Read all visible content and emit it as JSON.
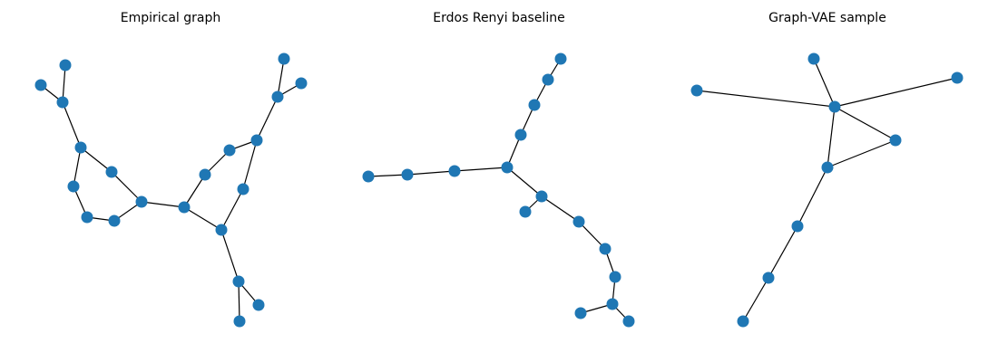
{
  "style": {
    "node_color": "#1f77b4",
    "edge_color": "#000000",
    "background": "#ffffff"
  },
  "panels": [
    {
      "title": "Empirical graph",
      "node_count": 24,
      "edges": [
        [
          0,
          1
        ],
        [
          1,
          2
        ],
        [
          1,
          3
        ],
        [
          3,
          4
        ],
        [
          3,
          5
        ],
        [
          4,
          6
        ],
        [
          6,
          7
        ],
        [
          7,
          8
        ],
        [
          8,
          9
        ],
        [
          5,
          9
        ],
        [
          9,
          10
        ],
        [
          10,
          11
        ],
        [
          10,
          12
        ],
        [
          11,
          13
        ],
        [
          13,
          14
        ],
        [
          14,
          15
        ],
        [
          15,
          16
        ],
        [
          15,
          17
        ],
        [
          14,
          18
        ],
        [
          18,
          12
        ],
        [
          12,
          19
        ],
        [
          19,
          20
        ],
        [
          19,
          21
        ],
        [
          2,
          22
        ],
        [
          2,
          23
        ]
      ]
    },
    {
      "title": "Erdos Renyi baseline",
      "node_count": 19,
      "edges": [
        [
          0,
          1
        ],
        [
          1,
          2
        ],
        [
          2,
          3
        ],
        [
          3,
          4
        ],
        [
          4,
          5
        ],
        [
          5,
          6
        ],
        [
          5,
          7
        ],
        [
          7,
          8
        ],
        [
          8,
          9
        ],
        [
          9,
          10
        ],
        [
          10,
          11
        ],
        [
          11,
          12
        ],
        [
          12,
          13
        ],
        [
          13,
          14
        ],
        [
          14,
          15
        ],
        [
          15,
          16
        ],
        [
          16,
          17
        ],
        [
          16,
          18
        ]
      ]
    },
    {
      "title": "Graph-VAE sample",
      "node_count": 9,
      "edges": [
        [
          0,
          1
        ],
        [
          1,
          2
        ],
        [
          1,
          3
        ],
        [
          1,
          4
        ],
        [
          1,
          5
        ],
        [
          4,
          5
        ],
        [
          5,
          6
        ],
        [
          6,
          7
        ],
        [
          7,
          8
        ]
      ]
    }
  ]
}
